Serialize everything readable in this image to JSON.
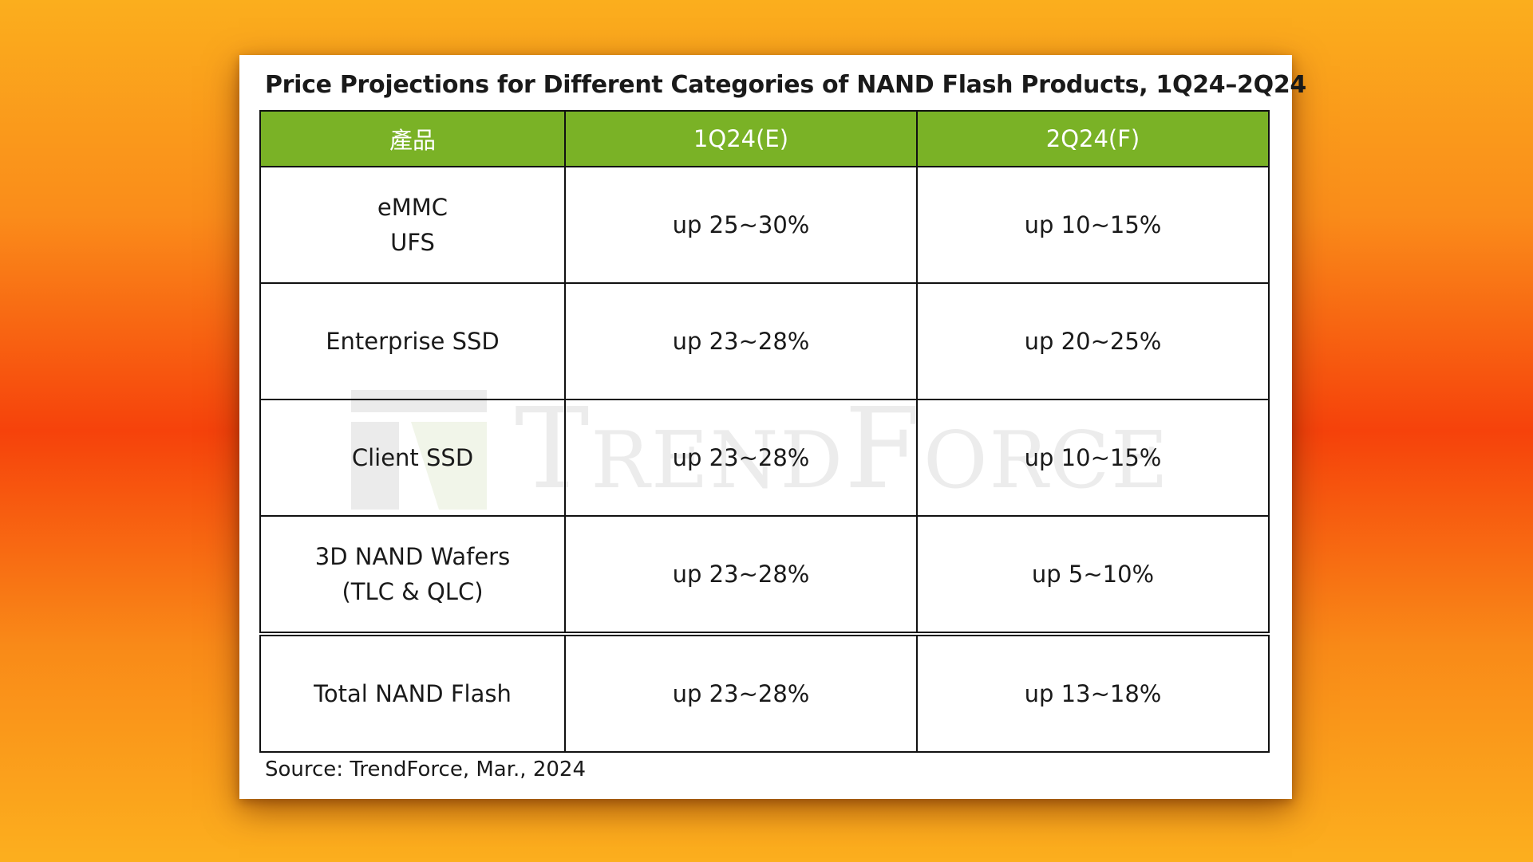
{
  "title": "Price Projections for Different Categories of NAND Flash Products, 1Q24–2Q24",
  "watermark": "TrendForce",
  "colors": {
    "header_bg": "#7ab226",
    "header_text": "#ffffff",
    "background_top": "#fbae1d",
    "background_mid": "#f6420b"
  },
  "table": {
    "headers": [
      "產品",
      "1Q24(E)",
      "2Q24(F)"
    ],
    "rows": [
      {
        "product": [
          "eMMC",
          "UFS"
        ],
        "q1": "up 25~30%",
        "q2": "up 10~15%"
      },
      {
        "product": [
          "Enterprise SSD"
        ],
        "q1": "up 23~28%",
        "q2": "up 20~25%"
      },
      {
        "product": [
          "Client SSD"
        ],
        "q1": "up 23~28%",
        "q2": "up 10~15%"
      },
      {
        "product": [
          "3D NAND Wafers",
          "(TLC & QLC)"
        ],
        "q1": "up 23~28%",
        "q2": "up 5~10%"
      },
      {
        "product": [
          "Total NAND Flash"
        ],
        "q1": "up 23~28%",
        "q2": "up 13~18%"
      }
    ]
  },
  "source": "Source: TrendForce, Mar., 2024"
}
